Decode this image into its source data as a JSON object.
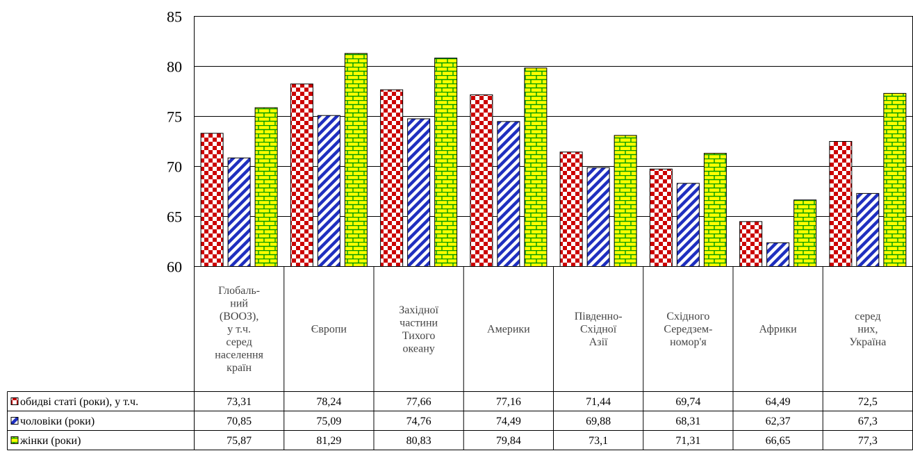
{
  "chart_data": {
    "type": "bar",
    "categories": [
      "Глобаль-\nний\n(ВООЗ),\nу т.ч.\nсеред\nнаселення\nкраїн",
      "Європи",
      "Західної\nчастини\nТихого\nокеану",
      "Америки",
      "Південно-\nСхідної\nАзії",
      "Східного\nСередзем-\nномор'я",
      "Африки",
      "серед\nних,\nУкраїна"
    ],
    "series": [
      {
        "name": "обидві статі (роки), у т.ч.",
        "values": [
          73.31,
          78.24,
          77.66,
          77.16,
          71.44,
          69.74,
          64.49,
          72.5
        ],
        "labels": [
          "73,31",
          "78,24",
          "77,66",
          "77,16",
          "71,44",
          "69,74",
          "64,49",
          "72,5"
        ],
        "color": "#cc0000",
        "pattern": "checker"
      },
      {
        "name": "чоловіки (роки)",
        "values": [
          70.85,
          75.09,
          74.76,
          74.49,
          69.88,
          68.31,
          62.37,
          67.3
        ],
        "labels": [
          "70,85",
          "75,09",
          "74,76",
          "74,49",
          "69,88",
          "68,31",
          "62,37",
          "67,3"
        ],
        "color": "#1f2fbf",
        "pattern": "diagonal"
      },
      {
        "name": "жінки (роки)",
        "values": [
          75.87,
          81.29,
          80.83,
          79.84,
          73.1,
          71.31,
          66.65,
          77.3
        ],
        "labels": [
          "75,87",
          "81,29",
          "80,83",
          "79,84",
          "73,1",
          "71,31",
          "66,65",
          "77,3"
        ],
        "color": "#ffff00",
        "pattern": "brick"
      }
    ],
    "ylim": [
      60,
      85
    ],
    "yticks": [
      60,
      65,
      70,
      75,
      80,
      85
    ],
    "grid": true,
    "legend": "data-table"
  }
}
